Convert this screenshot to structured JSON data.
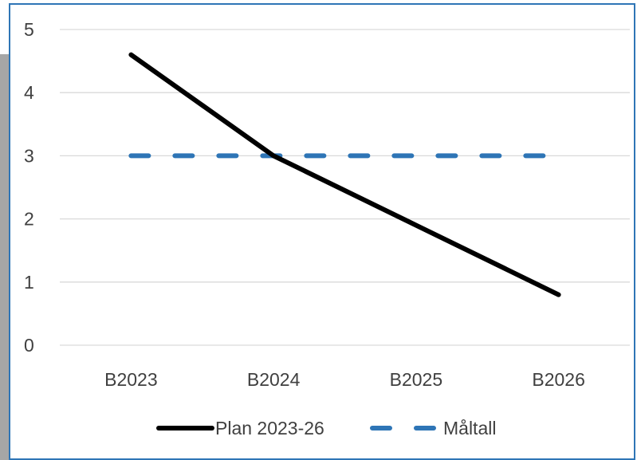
{
  "chart_data": {
    "type": "line",
    "categories": [
      "B2023",
      "B2024",
      "B2025",
      "B2026"
    ],
    "yticks": [
      "0",
      "1",
      "2",
      "3",
      "4",
      "5"
    ],
    "ylim": [
      0,
      5
    ],
    "grid": true,
    "legend_position": "bottom",
    "series": [
      {
        "name": "Plan 2023-26",
        "values": [
          4.6,
          3.0,
          1.9,
          0.8
        ],
        "color": "#000000",
        "style": "solid"
      },
      {
        "name": "Måltall",
        "values": [
          3,
          3,
          3,
          3
        ],
        "color": "#2e75b6",
        "style": "dashed"
      }
    ]
  },
  "colors": {
    "grid": "#d9d9d9",
    "frame": "#2e75b6",
    "left_band": "#a6a6a6",
    "text": "#404040"
  }
}
